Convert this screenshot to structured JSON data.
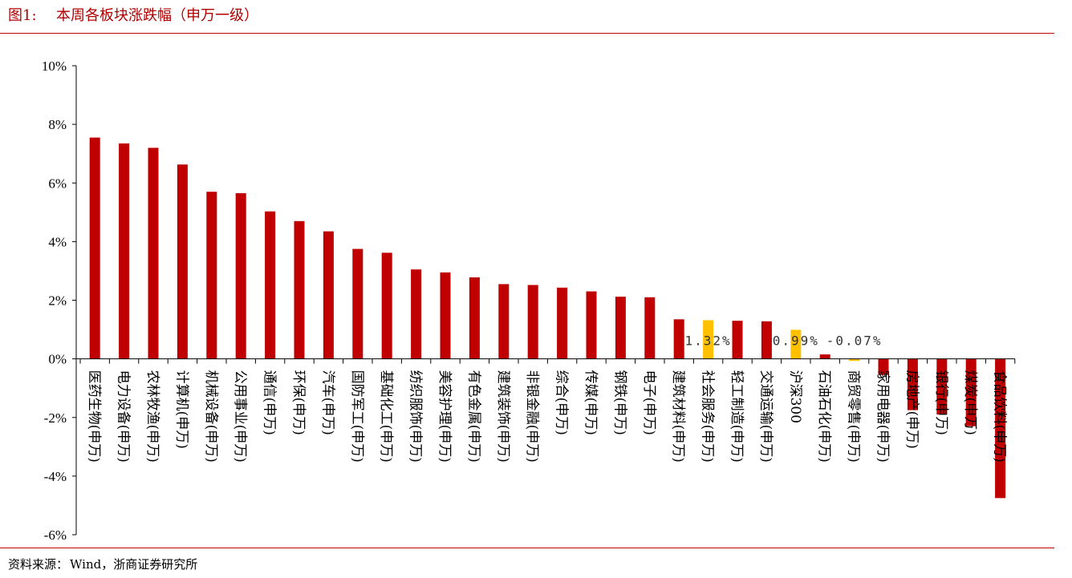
{
  "header": {
    "prefix": "图1:",
    "title": "本周各板块涨跌幅（申万一级）"
  },
  "footer": {
    "source_label": "资料来源：",
    "source_text": "Wind，浙商证券研究所"
  },
  "colors": {
    "bar": "#c00000",
    "highlight": "#ffc000",
    "axis": "#000000",
    "rule": "#c00000"
  },
  "chart_data": {
    "type": "bar",
    "title": "",
    "xlabel": "",
    "ylabel": "",
    "ylim": [
      -6,
      10
    ],
    "ytick_values": [
      10,
      8,
      6,
      4,
      2,
      0,
      -2,
      -4,
      -6
    ],
    "yticks": [
      "10%",
      "8%",
      "6%",
      "4%",
      "2%",
      "0%",
      "-2%",
      "-4%",
      "-6%"
    ],
    "grid": false,
    "legend": "none",
    "categories": [
      "医药生物(申万)",
      "电力设备(申万)",
      "农林牧渔(申万)",
      "计算机(申万)",
      "机械设备(申万)",
      "公用事业(申万)",
      "通信(申万)",
      "环保(申万)",
      "汽车(申万)",
      "国防军工(申万)",
      "基础化工(申万)",
      "纺织服饰(申万)",
      "美容护理(申万)",
      "有色金属(申万)",
      "建筑装饰(申万)",
      "非银金融(申万)",
      "综合(申万)",
      "传媒(申万)",
      "钢铁(申万)",
      "电子(申万)",
      "建筑材料(申万)",
      "社会服务(申万)",
      "轻工制造(申万)",
      "交通运输(申万)",
      "沪深300",
      "石油石化(申万)",
      "商贸零售(申万)",
      "家用电器(申万)",
      "房地产(申万)",
      "银行(申万)",
      "煤炭(申万)",
      "食品饮料(申万)"
    ],
    "values": [
      7.55,
      7.35,
      7.2,
      6.63,
      5.7,
      5.65,
      5.03,
      4.7,
      4.35,
      3.75,
      3.62,
      3.05,
      2.95,
      2.78,
      2.55,
      2.52,
      2.43,
      2.3,
      2.12,
      2.1,
      1.35,
      1.32,
      1.3,
      1.28,
      0.99,
      0.15,
      -0.07,
      -0.55,
      -1.75,
      -1.9,
      -2.3,
      -4.75
    ],
    "highlight_indices": [
      21,
      24,
      26
    ],
    "data_labels": [
      {
        "index": 21,
        "text": "1.32%"
      },
      {
        "index": 24,
        "text": "0.99%"
      },
      {
        "index": 26,
        "text": "-0.07%"
      }
    ]
  }
}
